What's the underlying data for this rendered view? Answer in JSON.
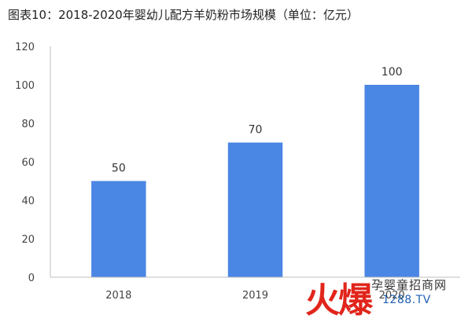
{
  "chart_data": {
    "type": "bar",
    "title": "图表10：2018-2020年婴幼儿配方羊奶粉市场规模（单位：亿元）",
    "categories": [
      "2018",
      "2019",
      "2020"
    ],
    "values": [
      50,
      70,
      100
    ],
    "data_labels": [
      "50",
      "70",
      "100"
    ],
    "ylim": [
      0,
      120
    ],
    "yticks": [
      0,
      20,
      40,
      60,
      80,
      100,
      120
    ],
    "xlabel": "",
    "ylabel": "",
    "grid": false,
    "legend": "none",
    "bar_color": "#4a86e4"
  },
  "watermark": {
    "brand_cn": "火爆",
    "site_name": "孕婴童招商网",
    "url": "1288.TV",
    "brand_color": "#e1251b",
    "url_color": "#1e5fb3"
  }
}
